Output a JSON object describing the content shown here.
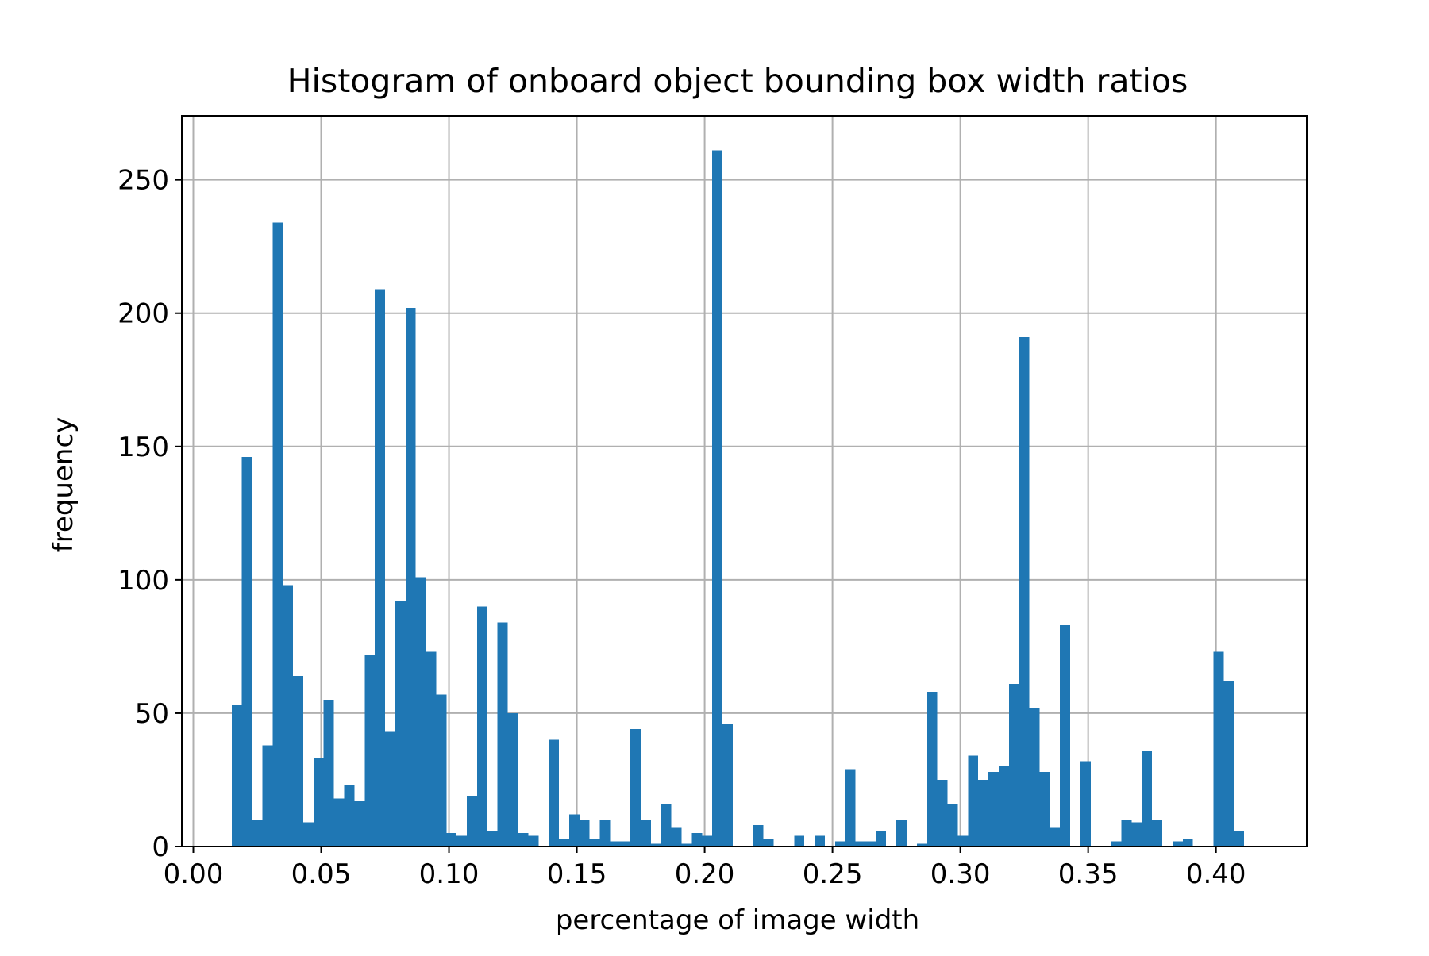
{
  "chart_data": {
    "type": "bar",
    "title": "Histogram of onboard object bounding box width ratios",
    "xlabel": "percentage of image width",
    "ylabel": "frequency",
    "xlim": [
      -0.0045,
      0.4355
    ],
    "ylim": [
      0,
      274
    ],
    "grid": true,
    "bar_color": "#1f77b4",
    "bin_width": 0.004,
    "bin_start": 0.015,
    "x_ticks": [
      0.0,
      0.05,
      0.1,
      0.15,
      0.2,
      0.25,
      0.3,
      0.35,
      0.4
    ],
    "x_tick_labels": [
      "0.00",
      "0.05",
      "0.10",
      "0.15",
      "0.20",
      "0.25",
      "0.30",
      "0.35",
      "0.40"
    ],
    "y_ticks": [
      0,
      50,
      100,
      150,
      200,
      250
    ],
    "y_tick_labels": [
      "0",
      "50",
      "100",
      "150",
      "200",
      "250"
    ],
    "values": [
      53,
      146,
      10,
      38,
      234,
      98,
      64,
      9,
      33,
      55,
      18,
      23,
      17,
      72,
      209,
      43,
      92,
      202,
      101,
      73,
      57,
      5,
      4,
      19,
      90,
      6,
      84,
      50,
      5,
      4,
      0,
      40,
      3,
      12,
      10,
      3,
      10,
      2,
      2,
      44,
      10,
      1,
      16,
      7,
      1,
      5,
      4,
      261,
      46,
      0,
      0,
      8,
      3,
      0,
      0,
      4,
      0,
      4,
      0,
      2,
      29,
      2,
      2,
      6,
      0,
      10,
      0,
      1,
      58,
      25,
      16,
      4,
      34,
      25,
      28,
      30,
      61,
      191,
      52,
      28,
      7,
      83,
      0,
      32,
      0,
      0,
      2,
      10,
      9,
      36,
      10,
      0,
      2,
      3,
      0,
      0,
      73,
      62,
      6
    ]
  }
}
